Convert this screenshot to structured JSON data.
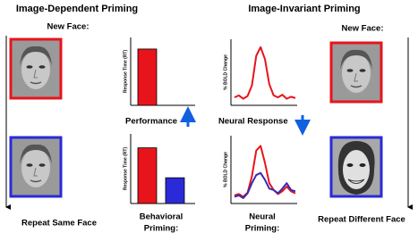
{
  "titles": {
    "left": "Image-Dependent Priming",
    "right": "Image-Invariant Priming"
  },
  "left": {
    "top_label": "New Face:",
    "bottom_label": "Repeat Same Face"
  },
  "right": {
    "top_label": "New Face:",
    "bottom_label": "Repeat Different Face"
  },
  "middle": {
    "performance_label": "Performance",
    "neural_response_label": "Neural Response",
    "behavioral_label": [
      "Behavioral",
      "Priming:"
    ],
    "neural_label": [
      "Neural",
      "Priming:"
    ]
  },
  "charts": [
    {
      "type": "bar",
      "y_label": "Response Time (RT)",
      "ylim": [
        0,
        1
      ],
      "series": [
        {
          "color": "#e8141c",
          "values": [
            0.83
          ]
        }
      ]
    },
    {
      "type": "bar",
      "y_label": "Response Time (RT)",
      "ylim": [
        0,
        1
      ],
      "series": [
        {
          "color": "#e8141c",
          "values": [
            0.8
          ]
        },
        {
          "color": "#2a2ad8",
          "values": [
            0.37
          ]
        }
      ]
    },
    {
      "type": "line",
      "y_label": "% BOLD Change",
      "ylim": [
        0,
        1
      ],
      "series": [
        {
          "color": "#e8141c",
          "values": [
            0.12,
            0.15,
            0.1,
            0.14,
            0.3,
            0.75,
            0.88,
            0.7,
            0.32,
            0.15,
            0.12,
            0.16,
            0.1,
            0.13,
            0.11
          ]
        }
      ]
    },
    {
      "type": "line",
      "y_label": "% BOLD Change",
      "ylim": [
        0,
        1
      ],
      "series": [
        {
          "color": "#e8141c",
          "values": [
            0.12,
            0.14,
            0.1,
            0.16,
            0.4,
            0.78,
            0.85,
            0.6,
            0.3,
            0.2,
            0.14,
            0.18,
            0.25,
            0.18,
            0.15
          ]
        },
        {
          "color": "#3a2ab0",
          "values": [
            0.1,
            0.12,
            0.08,
            0.15,
            0.3,
            0.42,
            0.45,
            0.35,
            0.22,
            0.2,
            0.15,
            0.22,
            0.3,
            0.2,
            0.18
          ]
        }
      ]
    }
  ]
}
